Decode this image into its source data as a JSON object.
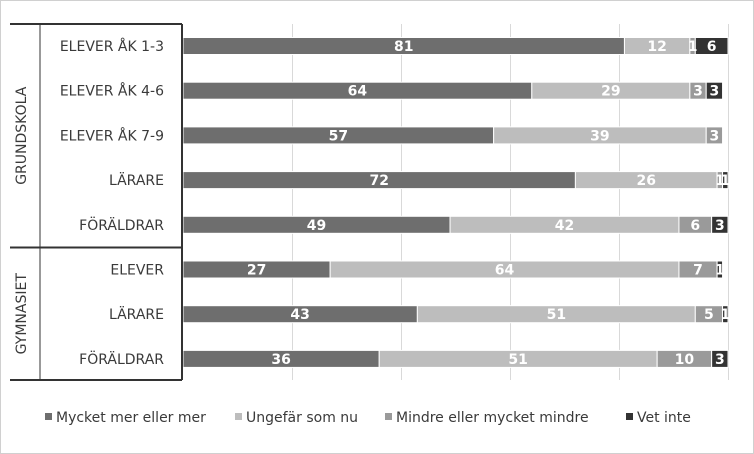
{
  "chart_data": {
    "type": "bar",
    "orientation": "horizontal",
    "stacked": true,
    "groups": [
      {
        "label": "GRUNDSKOLA",
        "categories": [
          "ELEVER ÅK 1-3",
          "ELEVER ÅK 4-6",
          "ELEVER ÅK 7-9",
          "LÄRARE",
          "FÖRÄLDRAR"
        ]
      },
      {
        "label": "GYMNASIET",
        "categories": [
          "ELEVER",
          "LÄRARE",
          "FÖRÄLDRAR"
        ]
      }
    ],
    "categories": [
      "ELEVER ÅK 1-3",
      "ELEVER ÅK 4-6",
      "ELEVER ÅK 7-9",
      "LÄRARE",
      "FÖRÄLDRAR",
      "ELEVER",
      "LÄRARE",
      "FÖRÄLDRAR"
    ],
    "series": [
      {
        "name": "Mycket mer eller mer",
        "color": "#6e6e6e",
        "values": [
          81,
          64,
          57,
          72,
          49,
          27,
          43,
          36
        ]
      },
      {
        "name": "Ungefär som nu",
        "color": "#bdbdbd",
        "values": [
          12,
          29,
          39,
          26,
          42,
          64,
          51,
          51
        ]
      },
      {
        "name": "Mindre eller mycket mindre",
        "color": "#9a9a9a",
        "values": [
          1,
          3,
          3,
          1,
          6,
          7,
          5,
          10
        ]
      },
      {
        "name": "Vet inte",
        "color": "#333333",
        "values": [
          6,
          3,
          0,
          1,
          3,
          1,
          1,
          3
        ]
      }
    ],
    "labels": [
      [
        "81",
        "12",
        "1",
        "6"
      ],
      [
        "64",
        "29",
        "3",
        "3"
      ],
      [
        "57",
        "39",
        "3",
        ""
      ],
      [
        "72",
        "26",
        "1",
        "1"
      ],
      [
        "49",
        "42",
        "6",
        "3"
      ],
      [
        "27",
        "64",
        "7",
        "1"
      ],
      [
        "43",
        "51",
        "5",
        "1"
      ],
      [
        "36",
        "51",
        "10",
        "3"
      ]
    ],
    "xlim": [
      0,
      100
    ],
    "grid": true,
    "legend_position": "bottom"
  }
}
